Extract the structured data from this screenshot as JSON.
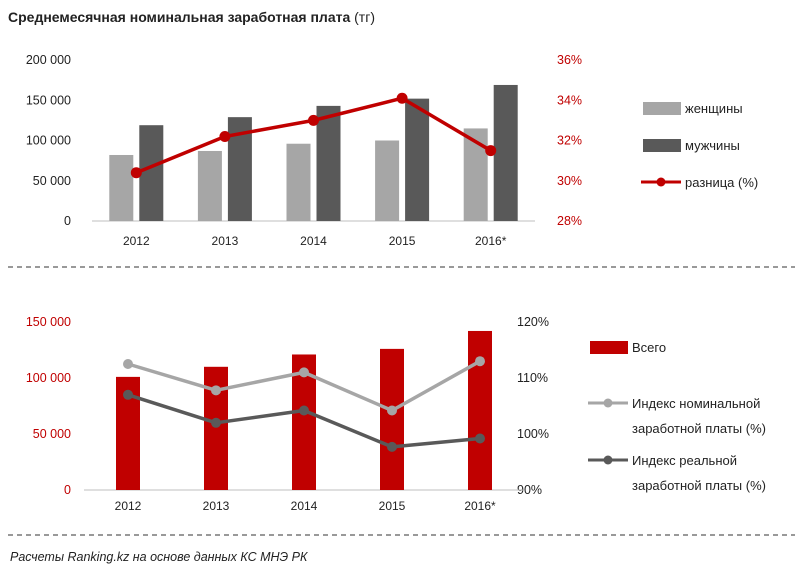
{
  "chart_data": [
    {
      "type": "bar",
      "title": "Среднемесячная  номинальная  заработная  плата",
      "title_unit": "(тг)",
      "categories": [
        "2012",
        "2013",
        "2014",
        "2015",
        "2016*"
      ],
      "y_ticks": [
        "0",
        "50 000",
        "100 000",
        "150 000",
        "200 000"
      ],
      "ylim": [
        0,
        200000
      ],
      "y2_ticks": [
        "28%",
        "30%",
        "32%",
        "34%",
        "36%"
      ],
      "y2lim": [
        28,
        36
      ],
      "series": [
        {
          "name": "женщины",
          "kind": "bar",
          "axis": "left",
          "color": "#a6a6a6",
          "values": [
            82000,
            87000,
            96000,
            100000,
            115000
          ]
        },
        {
          "name": "мужчины",
          "kind": "bar",
          "axis": "left",
          "color": "#595959",
          "values": [
            119000,
            129000,
            143000,
            152000,
            169000
          ]
        },
        {
          "name": "разница (%)",
          "kind": "line",
          "axis": "right",
          "color": "#c00000",
          "values": [
            30.4,
            32.2,
            33.0,
            34.1,
            31.5
          ]
        }
      ],
      "legend_position": "right"
    },
    {
      "type": "bar",
      "title": "",
      "categories": [
        "2012",
        "2013",
        "2014",
        "2015",
        "2016*"
      ],
      "y_ticks": [
        "0",
        "50 000",
        "100 000",
        "150 000"
      ],
      "ylim": [
        0,
        150000
      ],
      "y2_ticks": [
        "90%",
        "100%",
        "110%",
        "120%"
      ],
      "y2lim": [
        90,
        120
      ],
      "series": [
        {
          "name": "Всего",
          "kind": "bar",
          "axis": "left",
          "color": "#c00000",
          "values": [
            101000,
            110000,
            121000,
            126000,
            142000
          ]
        },
        {
          "name": "Индекс номинальной заработной платы (%)",
          "legend_lines": [
            "Индекс номинальной",
            "заработной платы (%)"
          ],
          "kind": "line",
          "axis": "right",
          "color": "#a6a6a6",
          "values": [
            112.5,
            107.8,
            111.0,
            104.2,
            113.0
          ]
        },
        {
          "name": "Индекс реальной заработной платы (%)",
          "legend_lines": [
            "Индекс реальной",
            "заработной платы (%)"
          ],
          "kind": "line",
          "axis": "right",
          "color": "#595959",
          "values": [
            107.0,
            102.0,
            104.2,
            97.7,
            99.2
          ]
        }
      ],
      "legend_position": "right"
    }
  ],
  "source": "Расчеты Ranking.kz на основе данных КС МНЭ РК"
}
